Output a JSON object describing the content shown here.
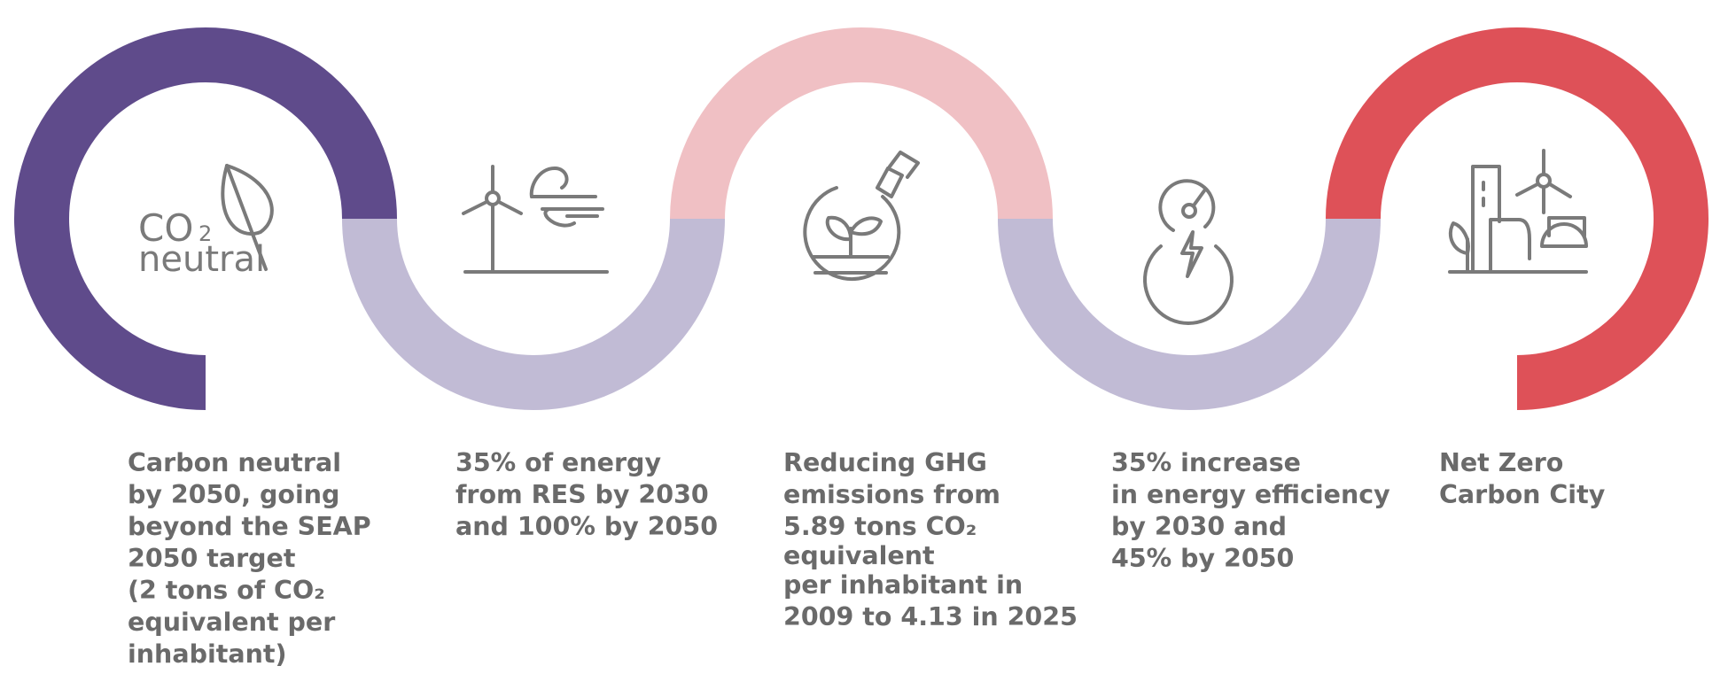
{
  "colors": {
    "purple": "#5f4b8b",
    "lavender": "#c1bbd5",
    "pink": "#f0c0c4",
    "red": "#de5158",
    "text": "#6a6a6a",
    "icon": "#7a7a7a"
  },
  "icons": {
    "co2": {
      "name": "co2-neutral-leaf-icon",
      "text_top": "CO",
      "text_sub": "2",
      "text_bottom": "neutral"
    },
    "res": {
      "name": "wind-turbine-icon"
    },
    "ghg": {
      "name": "plant-flask-icon"
    },
    "efficiency": {
      "name": "energy-gauge-icon"
    },
    "city": {
      "name": "green-city-icon"
    }
  },
  "steps": [
    {
      "lines": [
        "Carbon neutral",
        "by 2050, going",
        "beyond the SEAP",
        "2050 target",
        "(2 tons of CO₂",
        "equivalent per",
        "inhabitant)"
      ]
    },
    {
      "lines": [
        "35% of energy",
        "from RES by 2030",
        "and 100% by 2050"
      ]
    },
    {
      "lines": [
        "Reducing GHG",
        "emissions from",
        "5.89 tons CO₂",
        "equivalent",
        "per inhabitant in",
        "2009 to 4.13 in 2025"
      ]
    },
    {
      "lines": [
        "35% increase",
        "in energy efficiency",
        "by 2030 and",
        "45% by 2050"
      ]
    },
    {
      "lines": [
        "Net Zero",
        "Carbon City"
      ]
    }
  ]
}
